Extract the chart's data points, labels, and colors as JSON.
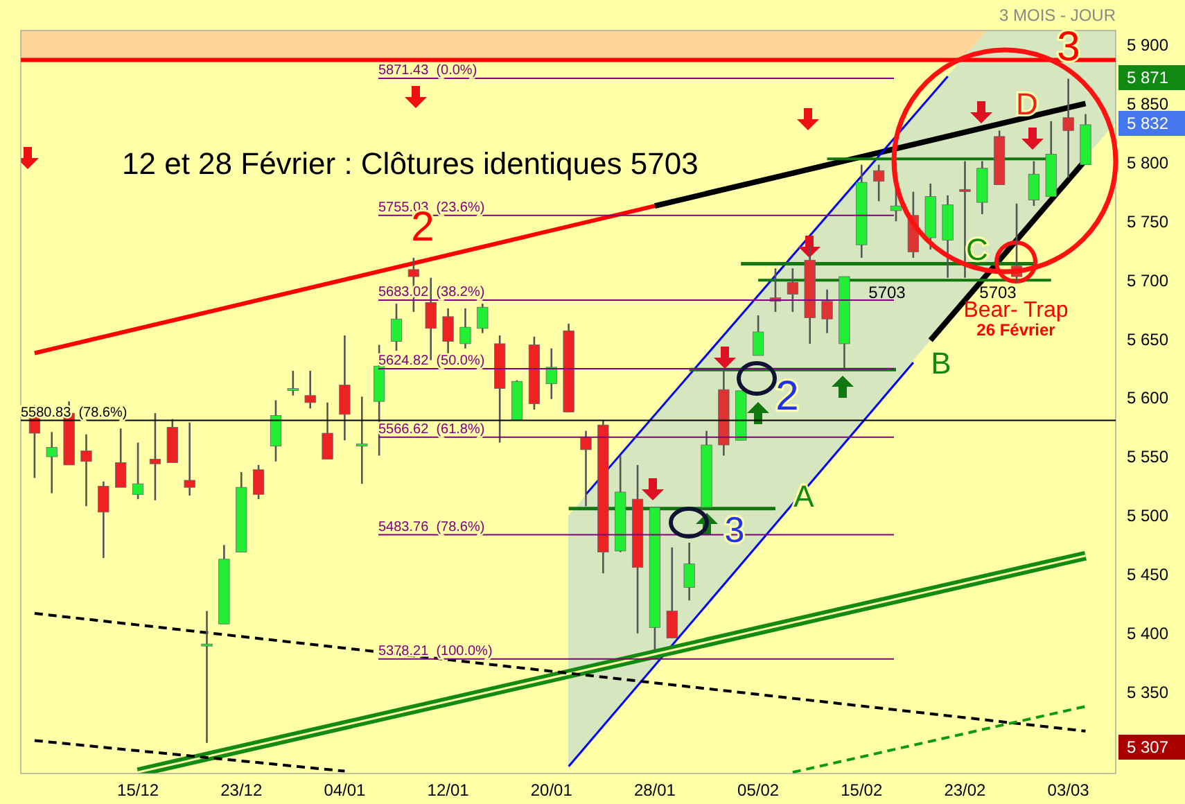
{
  "chart_data": {
    "type": "candlestick",
    "subtitle": "3 MOIS - JOUR",
    "categories": [
      null,
      null,
      null,
      null,
      null,
      null,
      "15/12",
      null,
      null,
      null,
      null,
      null,
      "23/12",
      null,
      null,
      null,
      null,
      null,
      "04/01",
      null,
      null,
      null,
      null,
      null,
      "12/01",
      null,
      null,
      null,
      null,
      null,
      "20/01",
      null,
      null,
      null,
      null,
      null,
      "28/01",
      null,
      null,
      null,
      null,
      null,
      "05/02",
      null,
      null,
      null,
      null,
      null,
      "15/02",
      null,
      null,
      null,
      null,
      null,
      "23/02",
      null,
      null,
      null,
      null,
      null,
      "03/03",
      null
    ],
    "ohlc": [
      [
        5592,
        5594,
        5532,
        5570
      ],
      [
        5550,
        5571,
        5519,
        5558
      ],
      [
        5587,
        5597,
        5543,
        5543
      ],
      [
        5555,
        5569,
        5508,
        5546
      ],
      [
        5525,
        5529,
        5464,
        5503
      ],
      [
        5545,
        5574,
        5524,
        5524
      ],
      [
        5518,
        5562,
        5514,
        5527
      ],
      [
        5548,
        5587,
        5513,
        5544
      ],
      [
        5575,
        5582,
        5545,
        5545
      ],
      [
        5530,
        5579,
        5517,
        5524
      ],
      [
        5390,
        5419,
        5307,
        5391
      ],
      [
        5408,
        5475,
        5408,
        5463
      ],
      [
        5469,
        5537,
        5469,
        5524
      ],
      [
        5539,
        5543,
        5514,
        5518
      ],
      [
        5559,
        5598,
        5546,
        5585
      ],
      [
        5607,
        5623,
        5602,
        5608
      ],
      [
        5602,
        5623,
        5591,
        5596
      ],
      [
        5570,
        5596,
        5548,
        5548
      ],
      [
        5611,
        5653,
        5564,
        5586
      ],
      [
        5559,
        5601,
        5527,
        5561
      ],
      [
        5597,
        5645,
        5551,
        5627
      ],
      [
        5648,
        5680,
        5640,
        5667
      ],
      [
        5709,
        5719,
        5673,
        5703
      ],
      [
        5681,
        5702,
        5632,
        5659
      ],
      [
        5669,
        5676,
        5635,
        5648
      ],
      [
        5646,
        5676,
        5642,
        5660
      ],
      [
        5659,
        5680,
        5655,
        5677
      ],
      [
        5646,
        5653,
        5562,
        5608
      ],
      [
        5581,
        5615,
        5581,
        5614
      ],
      [
        5645,
        5652,
        5590,
        5595
      ],
      [
        5612,
        5642,
        5599,
        5626
      ],
      [
        5657,
        5663,
        5588,
        5588
      ],
      [
        5566,
        5572,
        5508,
        5556
      ],
      [
        5577,
        5581,
        5451,
        5469
      ],
      [
        5470,
        5551,
        5469,
        5520
      ],
      [
        5514,
        5543,
        5400,
        5456
      ],
      [
        5405,
        5507,
        5386,
        5507
      ],
      [
        5419,
        5473,
        5396,
        5396
      ],
      [
        5439,
        5477,
        5428,
        5459
      ],
      [
        5507,
        5572,
        5507,
        5560
      ],
      [
        5607,
        5623,
        5551,
        5560
      ],
      [
        5564,
        5606,
        5564,
        5606
      ],
      [
        5636,
        5670,
        5636,
        5656
      ],
      [
        5685,
        5710,
        5673,
        5682
      ],
      [
        5698,
        5710,
        5673,
        5688
      ],
      [
        5717,
        5729,
        5646,
        5668
      ],
      [
        5682,
        5692,
        5655,
        5667
      ],
      [
        5646,
        5703,
        5625,
        5703
      ],
      [
        5730,
        5798,
        5719,
        5783
      ],
      [
        5793,
        5798,
        5767,
        5784
      ],
      [
        5759,
        5800,
        5750,
        5763
      ],
      [
        5755,
        5775,
        5719,
        5724
      ],
      [
        5736,
        5782,
        5726,
        5771
      ],
      [
        5734,
        5772,
        5702,
        5764
      ],
      [
        5777,
        5801,
        5702,
        5776
      ],
      [
        5766,
        5801,
        5756,
        5795
      ],
      [
        5822,
        5827,
        5781,
        5781
      ],
      [
        5712,
        5765,
        5698,
        5703
      ],
      [
        5768,
        5801,
        5763,
        5790
      ],
      [
        5771,
        5835,
        5771,
        5807
      ],
      [
        5838,
        5871,
        5787,
        5827
      ],
      [
        5798,
        5841,
        5798,
        5832
      ]
    ],
    "colors": [
      "#ee2222",
      "#22ee33",
      "#ee2222",
      "#ee2222",
      "#ee2222",
      "#ee2222",
      "#22ee33",
      "#ee2222",
      "#ee2222",
      "#ee2222",
      "#22ee33",
      "#22ee33",
      "#22ee33",
      "#ee2222",
      "#22ee33",
      "#22ee33",
      "#ee2222",
      "#ee2222",
      "#ee2222",
      "#22ee33",
      "#22ee33",
      "#22ee33",
      "#ee2222",
      "#ee2222",
      "#ee2222",
      "#22ee33",
      "#22ee33",
      "#ee2222",
      "#22ee33",
      "#ee2222",
      "#22ee33",
      "#ee2222",
      "#ee2222",
      "#ee2222",
      "#22ee33",
      "#ee2222",
      "#22ee33",
      "#ee2222",
      "#22ee33",
      "#22ee33",
      "#dd3333",
      "#22ee33",
      "#22ee33",
      "#dd3333",
      "#dd3333",
      "#dd3333",
      "#dd3333",
      "#22ee33",
      "#22ee33",
      "#dd3333",
      "#22ee33",
      "#dd3333",
      "#22ee33",
      "#22ee33",
      "#dd3333",
      "#22ee33",
      "#dd3333",
      "#dd3333",
      "#22ee33",
      "#22ee33",
      "#dd3333",
      "#22ee33"
    ],
    "series": [
      {
        "type": "line",
        "color": "#ff0000",
        "values": [
          5638,
          null,
          null,
          null,
          null,
          null,
          null,
          null,
          null,
          null,
          null,
          null,
          null,
          null,
          null,
          null,
          null,
          null,
          null,
          null,
          null,
          null,
          null,
          null,
          null,
          null,
          null,
          null,
          null,
          null,
          null,
          null,
          null,
          null,
          null,
          null,
          5763,
          null,
          null,
          null,
          null,
          null,
          null,
          null,
          null,
          null,
          null,
          null,
          null,
          null,
          null,
          null,
          null,
          null,
          null,
          null,
          null,
          null,
          null,
          null,
          null,
          null
        ]
      },
      {
        "type": "line",
        "color": "#000000",
        "values": [
          null,
          null,
          null,
          null,
          null,
          null,
          null,
          null,
          null,
          null,
          null,
          null,
          null,
          null,
          null,
          null,
          null,
          null,
          null,
          null,
          null,
          null,
          null,
          null,
          null,
          null,
          null,
          null,
          null,
          null,
          null,
          null,
          null,
          null,
          null,
          null,
          5763,
          null,
          null,
          null,
          null,
          null,
          null,
          null,
          null,
          null,
          null,
          null,
          null,
          null,
          null,
          null,
          null,
          null,
          null,
          null,
          null,
          null,
          null,
          null,
          null,
          5850
        ]
      },
      {
        "type": "line",
        "color": "#0000ff",
        "values": [
          null,
          null,
          null,
          null,
          null,
          null,
          null,
          null,
          null,
          null,
          null,
          null,
          null,
          null,
          null,
          null,
          null,
          null,
          null,
          null,
          null,
          null,
          null,
          null,
          null,
          null,
          null,
          null,
          null,
          null,
          null,
          null,
          5518,
          null,
          null,
          null,
          null,
          null,
          null,
          null,
          null,
          null,
          null,
          null,
          null,
          null,
          null,
          null,
          null,
          null,
          null,
          null,
          null,
          5873,
          null,
          null,
          null,
          null,
          null,
          null,
          null,
          null
        ]
      },
      {
        "type": "line",
        "color": "#0000ff",
        "values": [
          null,
          null,
          null,
          null,
          null,
          null,
          null,
          null,
          null,
          null,
          null,
          null,
          null,
          null,
          null,
          null,
          null,
          null,
          null,
          null,
          null,
          null,
          null,
          null,
          null,
          null,
          null,
          null,
          null,
          null,
          null,
          5287,
          null,
          null,
          null,
          null,
          null,
          null,
          null,
          null,
          null,
          null,
          null,
          null,
          null,
          null,
          null,
          null,
          null,
          null,
          null,
          5630,
          null,
          null,
          null,
          null,
          null,
          null,
          null,
          null,
          null,
          null
        ]
      },
      {
        "type": "line",
        "color": "#000000",
        "values": [
          null,
          null,
          null,
          null,
          null,
          null,
          null,
          null,
          null,
          null,
          null,
          null,
          null,
          null,
          null,
          null,
          null,
          null,
          null,
          null,
          null,
          null,
          null,
          null,
          null,
          null,
          null,
          null,
          null,
          null,
          null,
          null,
          null,
          null,
          null,
          null,
          null,
          null,
          null,
          null,
          null,
          null,
          null,
          null,
          null,
          null,
          null,
          null,
          null,
          null,
          null,
          null,
          5649,
          null,
          null,
          null,
          null,
          null,
          null,
          null,
          null,
          5802
        ]
      },
      {
        "type": "line",
        "color": "#138a13",
        "values": [
          null,
          null,
          null,
          null,
          null,
          null,
          5282,
          null,
          null,
          null,
          null,
          null,
          null,
          null,
          null,
          null,
          null,
          null,
          null,
          null,
          null,
          null,
          null,
          null,
          null,
          null,
          null,
          null,
          null,
          null,
          null,
          null,
          null,
          null,
          null,
          null,
          null,
          null,
          null,
          null,
          null,
          null,
          null,
          null,
          null,
          null,
          null,
          null,
          null,
          null,
          null,
          null,
          null,
          null,
          null,
          null,
          null,
          null,
          null,
          null,
          null,
          5466
        ]
      },
      {
        "type": "line",
        "color": "#000000",
        "line_style": "dashed",
        "values": [
          5417,
          null,
          null,
          null,
          null,
          null,
          null,
          null,
          null,
          null,
          null,
          null,
          null,
          null,
          null,
          null,
          null,
          null,
          null,
          null,
          null,
          null,
          null,
          null,
          null,
          null,
          null,
          null,
          null,
          null,
          null,
          null,
          null,
          null,
          null,
          null,
          null,
          null,
          null,
          null,
          null,
          null,
          null,
          null,
          null,
          null,
          null,
          null,
          null,
          null,
          null,
          null,
          null,
          null,
          null,
          null,
          null,
          null,
          null,
          null,
          null,
          5317
        ]
      },
      {
        "type": "line",
        "color": "#000000",
        "line_style": "dashed",
        "values": [
          5309,
          null,
          null,
          null,
          null,
          null,
          null,
          null,
          null,
          null,
          null,
          null,
          null,
          null,
          null,
          null,
          null,
          null,
          5283,
          null,
          null,
          null,
          null,
          null,
          null,
          null,
          null,
          null,
          null,
          null,
          null,
          null,
          null,
          null,
          null,
          null,
          null,
          null,
          null,
          null,
          null,
          null,
          null,
          null,
          null,
          null,
          null,
          null,
          null,
          null,
          null,
          null,
          null,
          null,
          null,
          null,
          null,
          null,
          null,
          null,
          null,
          null
        ]
      },
      {
        "type": "line",
        "color": "#119911",
        "line_style": "dashed",
        "values": [
          null,
          null,
          null,
          null,
          null,
          null,
          null,
          null,
          null,
          null,
          null,
          null,
          null,
          null,
          null,
          null,
          null,
          null,
          null,
          null,
          null,
          null,
          null,
          null,
          null,
          null,
          null,
          null,
          null,
          null,
          null,
          null,
          null,
          null,
          null,
          null,
          null,
          null,
          null,
          null,
          null,
          null,
          null,
          null,
          5282,
          null,
          null,
          null,
          null,
          null,
          null,
          null,
          null,
          null,
          null,
          null,
          null,
          null,
          null,
          null,
          null,
          5338
        ]
      },
      {
        "type": "line",
        "color": "#117711",
        "values": [
          null,
          null,
          null,
          null,
          null,
          null,
          null,
          null,
          null,
          null,
          null,
          null,
          null,
          null,
          null,
          null,
          null,
          null,
          null,
          null,
          null,
          null,
          null,
          null,
          null,
          null,
          null,
          null,
          null,
          null,
          null,
          5506,
          null,
          null,
          null,
          null,
          null,
          null,
          null,
          null,
          null,
          null,
          null,
          5506,
          null,
          null,
          null,
          null,
          null,
          null,
          null,
          null,
          null,
          null,
          null,
          null,
          null,
          null,
          null,
          null,
          null,
          null
        ]
      },
      {
        "type": "line",
        "color": "#117711",
        "values": [
          null,
          null,
          null,
          null,
          null,
          null,
          null,
          null,
          null,
          null,
          null,
          null,
          null,
          null,
          null,
          null,
          null,
          null,
          null,
          null,
          null,
          null,
          null,
          null,
          null,
          null,
          null,
          null,
          null,
          null,
          null,
          null,
          null,
          null,
          null,
          null,
          null,
          null,
          5624,
          null,
          null,
          null,
          null,
          null,
          null,
          null,
          null,
          null,
          null,
          null,
          5624,
          null,
          null,
          null,
          null,
          null,
          null,
          null,
          null,
          null,
          null,
          null
        ]
      },
      {
        "type": "line",
        "color": "#117711",
        "values": [
          null,
          null,
          null,
          null,
          null,
          null,
          null,
          null,
          null,
          null,
          null,
          null,
          null,
          null,
          null,
          null,
          null,
          null,
          null,
          null,
          null,
          null,
          null,
          null,
          null,
          null,
          null,
          null,
          null,
          null,
          null,
          null,
          null,
          null,
          null,
          null,
          null,
          null,
          null,
          null,
          null,
          null,
          5700,
          null,
          null,
          null,
          null,
          null,
          null,
          null,
          null,
          null,
          null,
          null,
          null,
          null,
          null,
          null,
          null,
          5700,
          null,
          null
        ]
      },
      {
        "type": "line",
        "color": "#117711",
        "values": [
          null,
          null,
          null,
          null,
          null,
          null,
          null,
          null,
          null,
          null,
          null,
          null,
          null,
          null,
          null,
          null,
          null,
          null,
          null,
          null,
          null,
          null,
          null,
          null,
          null,
          null,
          null,
          null,
          null,
          null,
          null,
          null,
          null,
          null,
          null,
          null,
          null,
          null,
          null,
          null,
          null,
          5714,
          null,
          null,
          null,
          null,
          null,
          null,
          null,
          null,
          null,
          null,
          null,
          null,
          null,
          null,
          null,
          null,
          5714,
          null,
          null,
          null
        ]
      },
      {
        "type": "line",
        "color": "#117711",
        "values": [
          null,
          null,
          null,
          null,
          null,
          null,
          null,
          null,
          null,
          null,
          null,
          null,
          null,
          null,
          null,
          null,
          null,
          null,
          null,
          null,
          null,
          null,
          null,
          null,
          null,
          null,
          null,
          null,
          null,
          null,
          null,
          null,
          null,
          null,
          null,
          null,
          null,
          null,
          null,
          null,
          null,
          null,
          null,
          null,
          null,
          null,
          5803,
          null,
          null,
          null,
          null,
          null,
          null,
          null,
          null,
          null,
          null,
          null,
          null,
          5803,
          null,
          null
        ]
      }
    ],
    "ylim": [
      5281,
      5912
    ],
    "yticks": [
      {
        "value": 5350,
        "label": "5 350"
      },
      {
        "value": 5400,
        "label": "5 400"
      },
      {
        "value": 5450,
        "label": "5 450"
      },
      {
        "value": 5500,
        "label": "5 500"
      },
      {
        "value": 5550,
        "label": "5 550"
      },
      {
        "value": 5600,
        "label": "5 600"
      },
      {
        "value": 5650,
        "label": "5 650"
      },
      {
        "value": 5700,
        "label": "5 700"
      },
      {
        "value": 5750,
        "label": "5 750"
      },
      {
        "value": 5800,
        "label": "5 800"
      },
      {
        "value": 5850,
        "label": "5 850"
      },
      {
        "value": 5900,
        "label": "5 900"
      }
    ],
    "bands": [
      {
        "axis": "y",
        "from": 5887,
        "to": 5912,
        "color": "#ffd699"
      }
    ],
    "ref_lines": [
      {
        "axis": "y",
        "value": 5887,
        "color": "#ff0000"
      },
      {
        "axis": "y",
        "value": 5580.83,
        "label": "5580.83  (78.6%)",
        "color": "#000000"
      },
      {
        "axis": "y",
        "value": 5871.43,
        "label": "5871.43  (0.0%)",
        "color": "#800080"
      },
      {
        "axis": "y",
        "value": 5755.03,
        "label": "5755.03  (23.6%)",
        "color": "#800080"
      },
      {
        "axis": "y",
        "value": 5683.02,
        "label": "5683.02  (38.2%)",
        "color": "#800080"
      },
      {
        "axis": "y",
        "value": 5624.82,
        "label": "5624.82  (50.0%)",
        "color": "#800080"
      },
      {
        "axis": "y",
        "value": 5566.62,
        "label": "5566.62  (61.8%)",
        "color": "#800080"
      },
      {
        "axis": "y",
        "value": 5483.76,
        "label": "5483.76  (78.6%)",
        "color": "#800080"
      },
      {
        "axis": "y",
        "value": 5378.21,
        "label": "5378.21  (100.0%)",
        "color": "#800080"
      }
    ],
    "annotations": [
      "12 et 28 Février : Clôtures identiques 5703",
      "5 871",
      "5 832",
      "5 307",
      "2",
      "3",
      "D",
      "2",
      "3",
      "A",
      "B",
      "C",
      "5703",
      "5703",
      "Bear- Trap",
      "26 Février"
    ]
  }
}
